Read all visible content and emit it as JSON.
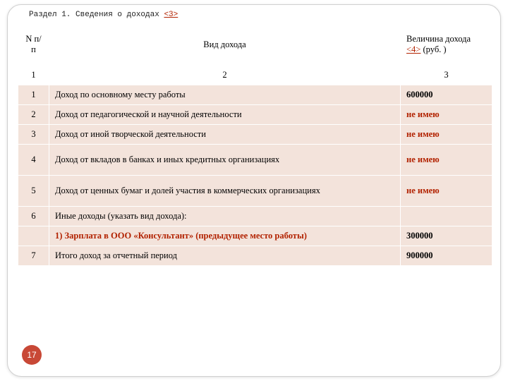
{
  "heading": {
    "prefix": "Раздел 1. Сведения о доходах ",
    "ref": "<3>"
  },
  "table": {
    "headers": {
      "col1": "N п/п",
      "col2": "Вид дохода",
      "col3_line1": "Величина дохода",
      "col3_ref": "<4>",
      "col3_suffix": " (руб. )"
    },
    "numrow": {
      "c1": "1",
      "c2": "2",
      "c3": "3"
    },
    "rows": [
      {
        "n": "1",
        "desc": "Доход по основному месту работы",
        "val": "600000",
        "val_red": false,
        "val_bold": true,
        "desc_red": false,
        "desc_bold": false
      },
      {
        "n": "2",
        "desc": "Доход от педагогической и научной деятельности",
        "val": "не имею",
        "val_red": true,
        "val_bold": true,
        "desc_red": false,
        "desc_bold": false
      },
      {
        "n": "3",
        "desc": "Доход от иной творческой деятельности",
        "val": "не имею",
        "val_red": true,
        "val_bold": true,
        "desc_red": false,
        "desc_bold": false
      },
      {
        "n": "4",
        "desc": "Доход от вкладов в банках и иных кредитных организациях",
        "val": "не имею",
        "val_red": true,
        "val_bold": true,
        "desc_red": false,
        "desc_bold": false,
        "tall": true
      },
      {
        "n": "5",
        "desc": "Доход от ценных бумаг и долей участия в коммерческих организациях",
        "val": "не имею",
        "val_red": true,
        "val_bold": true,
        "desc_red": false,
        "desc_bold": false,
        "tall": true
      },
      {
        "n": "6",
        "desc": "Иные доходы (указать вид дохода):",
        "val": "",
        "val_red": false,
        "val_bold": false,
        "desc_red": false,
        "desc_bold": false
      },
      {
        "n": "",
        "desc": "1) Зарплата в ООО «Консультант» (предыдущее место работы)",
        "val": "300000",
        "val_red": false,
        "val_bold": true,
        "desc_red": true,
        "desc_bold": true
      },
      {
        "n": "7",
        "desc": "Итого доход за отчетный период",
        "val": "900000",
        "val_red": false,
        "val_bold": true,
        "desc_red": false,
        "desc_bold": false
      }
    ]
  },
  "page_number": "17",
  "colors": {
    "row_bg": "#f3e3db",
    "accent_red": "#b22200",
    "badge_bg": "#c84836",
    "card_border": "#d0d0d0"
  }
}
